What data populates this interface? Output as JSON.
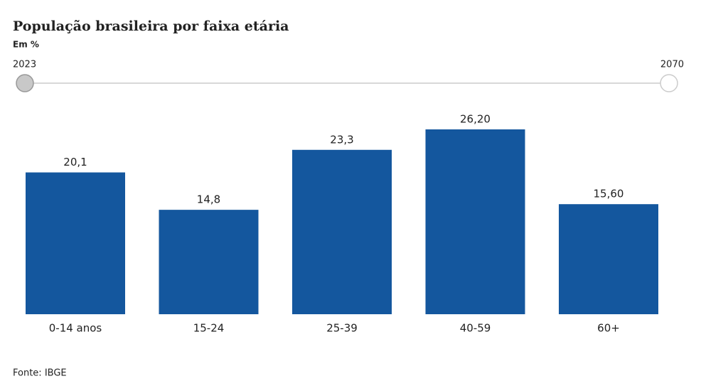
{
  "chart_data": {
    "type": "bar",
    "title": "População brasileira por faixa etária",
    "subtitle": "Em %",
    "slider": {
      "start": "2023",
      "end": "2070"
    },
    "categories": [
      "0-14 anos",
      "15-24",
      "25-39",
      "40-59",
      "60+"
    ],
    "values": [
      20.1,
      14.8,
      23.3,
      26.2,
      15.6
    ],
    "value_labels": [
      "20,1",
      "14,8",
      "23,3",
      "26,20",
      "15,60"
    ],
    "color": "#14579e",
    "source": "Fonte: IBGE"
  }
}
